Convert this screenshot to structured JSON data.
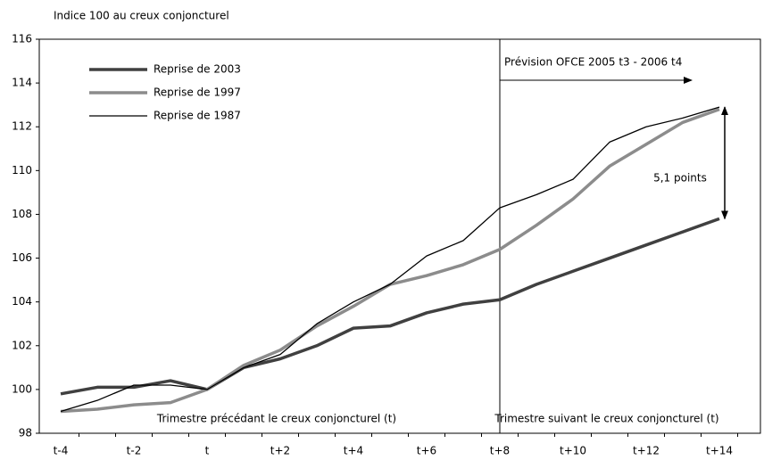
{
  "chart_data": {
    "type": "line",
    "ylabel": "Indice 100 au creux conjoncturel",
    "categories": [
      "t-4",
      null,
      "t-2",
      null,
      "t",
      null,
      "t+2",
      null,
      "t+4",
      null,
      "t+6",
      null,
      "t+8",
      null,
      "t+10",
      null,
      "t+12",
      null,
      "t+14"
    ],
    "series": [
      {
        "name": "Reprise de 2003",
        "color": "#404040",
        "values": [
          99.8,
          100.1,
          100.1,
          100.4,
          100.0,
          101.0,
          101.4,
          102.0,
          102.8,
          102.9,
          103.5,
          103.9,
          104.1,
          104.8,
          105.4,
          106.0,
          106.6,
          107.2,
          107.8
        ]
      },
      {
        "name": "Reprise de 1997",
        "color": "#8c8c8c",
        "values": [
          99.0,
          99.1,
          99.3,
          99.4,
          100.0,
          101.1,
          101.8,
          102.9,
          103.8,
          104.8,
          105.2,
          105.7,
          106.4,
          107.5,
          108.7,
          110.2,
          111.2,
          112.2,
          112.8
        ]
      },
      {
        "name": "Reprise de 1987",
        "color": "#000000",
        "values": [
          99.0,
          99.5,
          100.2,
          100.2,
          100.0,
          101.0,
          101.6,
          103.0,
          104.0,
          104.8,
          106.1,
          106.8,
          108.3,
          108.9,
          109.6,
          111.3,
          112.0,
          112.4,
          112.9
        ]
      }
    ],
    "ylim": [
      98,
      116
    ],
    "yticks": [
      98,
      100,
      102,
      104,
      106,
      108,
      110,
      112,
      114,
      116
    ],
    "annotations": {
      "forecast": "Prévision OFCE 2005 t3 - 2006 t4",
      "gap": "5,1 points",
      "before": "Trimestre précédant le creux conjoncturel (t)",
      "after": "Trimestre suivant le creux conjoncturel (t)"
    }
  }
}
